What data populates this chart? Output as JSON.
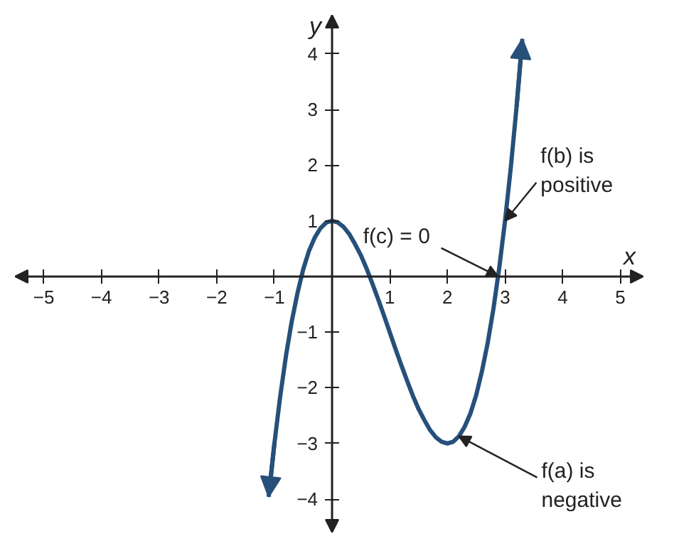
{
  "chart_data": {
    "type": "line",
    "xlabel": "x",
    "ylabel": "y",
    "x": [
      -1.1,
      -1.0,
      -0.9,
      -0.8,
      -0.7,
      -0.6,
      -0.5,
      -0.4,
      -0.3,
      -0.2,
      -0.1,
      0,
      0.1,
      0.2,
      0.3,
      0.4,
      0.5,
      0.6,
      0.7,
      0.8,
      0.9,
      1.0,
      1.1,
      1.2,
      1.3,
      1.4,
      1.5,
      1.6,
      1.7,
      1.8,
      1.9,
      2.0,
      2.1,
      2.2,
      2.3,
      2.4,
      2.5,
      2.6,
      2.7,
      2.8,
      2.9,
      3.0,
      3.1,
      3.2,
      3.3
    ],
    "series": [
      {
        "color": "#26507a",
        "values": [
          -3.96,
          -3.0,
          -2.16,
          -1.43,
          -0.81,
          -0.3,
          0.13,
          0.46,
          0.7,
          0.87,
          0.97,
          1.0,
          0.97,
          0.89,
          0.76,
          0.58,
          0.38,
          0.14,
          -0.13,
          -0.41,
          -0.7,
          -1.0,
          -1.3,
          -1.59,
          -1.87,
          -2.14,
          -2.38,
          -2.58,
          -2.76,
          -2.89,
          -2.97,
          -3.0,
          -2.97,
          -2.87,
          -2.7,
          -2.46,
          -2.13,
          -1.7,
          -1.19,
          -0.57,
          0.16,
          1.0,
          1.96,
          3.05,
          4.27
        ]
      }
    ],
    "xlim": [
      -5.5,
      5.4
    ],
    "ylim": [
      -4.6,
      4.7
    ],
    "xticks": [
      -5,
      -4,
      -3,
      -2,
      -1,
      1,
      2,
      3,
      4,
      5
    ],
    "yticks": [
      -4,
      -3,
      -2,
      -1,
      1,
      2,
      3,
      4
    ],
    "grid": false,
    "marker": "none",
    "line_style": "solid",
    "annotations": [
      {
        "text": "f(c) = 0",
        "x": 2.88,
        "y": 0
      },
      {
        "text": "f(b) is\npositive",
        "x": 3.0,
        "y": 1.0
      },
      {
        "text": "f(a) is\nnegative",
        "x": 2.2,
        "y": -2.87
      }
    ]
  }
}
